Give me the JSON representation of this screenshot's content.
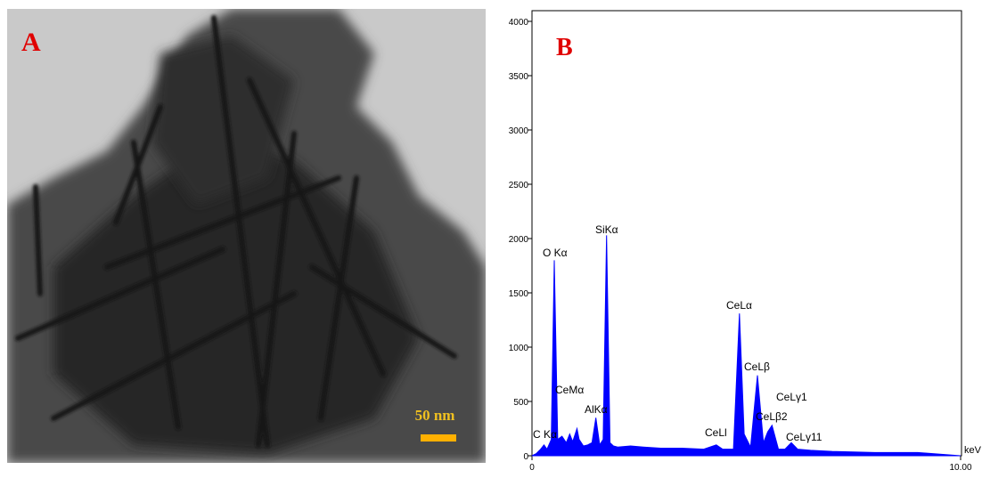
{
  "image_panel": {
    "label": "A",
    "scale_bar": "50 nm"
  },
  "chart_data": {
    "type": "spectrum",
    "label": "B",
    "x_label": "keV",
    "color": "#0000ff",
    "x": [
      0,
      0.1,
      0.2,
      0.28,
      0.35,
      0.45,
      0.52,
      0.6,
      0.7,
      0.8,
      0.88,
      0.95,
      1.05,
      1.1,
      1.2,
      1.3,
      1.4,
      1.49,
      1.58,
      1.66,
      1.74,
      1.82,
      1.9,
      2.0,
      2.3,
      2.6,
      3.0,
      3.5,
      4.0,
      4.3,
      4.45,
      4.7,
      4.84,
      4.95,
      5.1,
      5.26,
      5.4,
      5.5,
      5.6,
      5.75,
      5.9,
      6.05,
      6.2,
      6.5,
      7.0,
      8.0,
      9.0,
      10.0
    ],
    "values": [
      0,
      20,
      60,
      100,
      60,
      150,
      1800,
      150,
      180,
      120,
      200,
      130,
      250,
      150,
      90,
      100,
      120,
      350,
      100,
      150,
      2030,
      120,
      90,
      80,
      90,
      80,
      70,
      70,
      60,
      100,
      60,
      60,
      1310,
      200,
      80,
      740,
      120,
      220,
      280,
      60,
      60,
      120,
      60,
      50,
      40,
      30,
      30,
      0
    ],
    "xlim": [
      0,
      10
    ],
    "xticks": [
      0,
      {
        "value": 10,
        "label": "10.00"
      }
    ],
    "ylim": [
      0,
      4000
    ],
    "yticks": [
      0,
      500,
      1000,
      1500,
      2000,
      2500,
      3000,
      3500,
      4000
    ],
    "annotations": [
      "C Kα",
      "O Kα",
      "CeMα",
      "AlKα",
      "SiKα",
      "CeLl",
      "CeLα",
      "CeLβ",
      "CeLγ1",
      "CeLβ2",
      "CeLγ11"
    ]
  }
}
